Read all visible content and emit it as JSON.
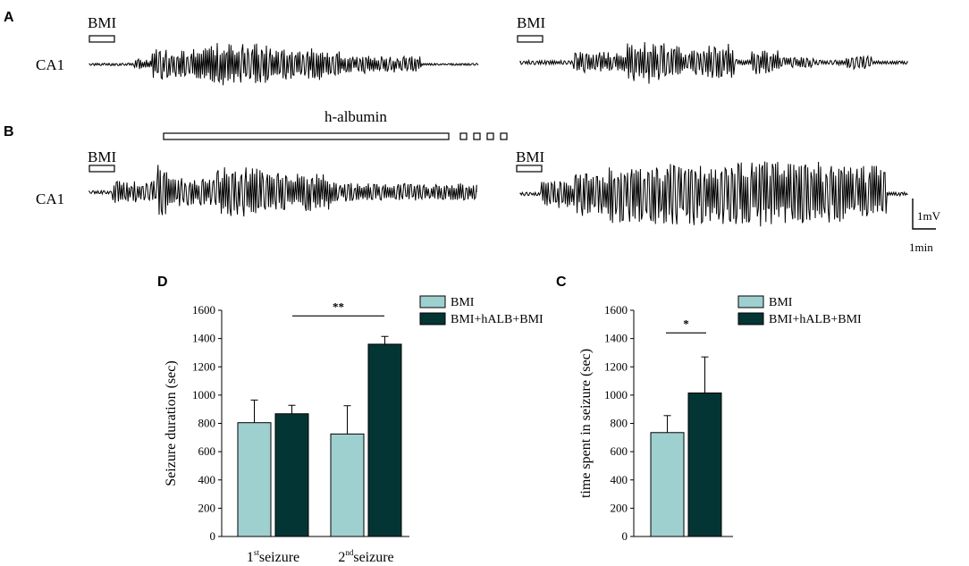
{
  "panels": {
    "A": "A",
    "B": "B",
    "C": "C",
    "D": "D"
  },
  "traces": {
    "channel_label_a": "CA1",
    "channel_label_b": "CA1",
    "drug_label": "BMI",
    "albumin_label": "h-albumin",
    "scale_voltage": "1mV",
    "scale_time": "1min"
  },
  "colors": {
    "bmi": "#9fd0d0",
    "bmi_halb_bmi": "#043535",
    "trace": "#000000"
  },
  "chart_data": [
    {
      "id": "D",
      "type": "bar",
      "ylabel": "Seizure duration (sec)",
      "xlabel": "",
      "ylim": [
        0,
        1600
      ],
      "yticks": [
        0,
        200,
        400,
        600,
        800,
        1000,
        1200,
        1400,
        1600
      ],
      "categories": [
        {
          "main": "1",
          "sup": "st",
          "rest": "seizure"
        },
        {
          "main": "2",
          "sup": "nd",
          "rest": "seizure"
        }
      ],
      "series": [
        {
          "name": "BMI",
          "values": [
            805,
            725
          ],
          "errors": [
            160,
            200
          ]
        },
        {
          "name": "BMI+hALB+BMI",
          "values": [
            868,
            1360
          ],
          "errors": [
            60,
            55
          ]
        }
      ],
      "significance": {
        "label": "**",
        "between": "1st BMI+hALB+BMI vs 2nd BMI+hALB+BMI"
      },
      "legend": "top-right"
    },
    {
      "id": "C",
      "type": "bar",
      "ylabel": "time spent in seizure (sec)",
      "xlabel": "",
      "ylim": [
        0,
        1600
      ],
      "yticks": [
        0,
        200,
        400,
        600,
        800,
        1000,
        1200,
        1400,
        1600
      ],
      "categories": [
        ""
      ],
      "series": [
        {
          "name": "BMI",
          "values": [
            735
          ],
          "errors": [
            120
          ]
        },
        {
          "name": "BMI+hALB+BMI",
          "values": [
            1015
          ],
          "errors": [
            255
          ]
        }
      ],
      "significance": {
        "label": "*",
        "between": "BMI vs BMI+hALB+BMI"
      },
      "legend": "top-right"
    }
  ]
}
